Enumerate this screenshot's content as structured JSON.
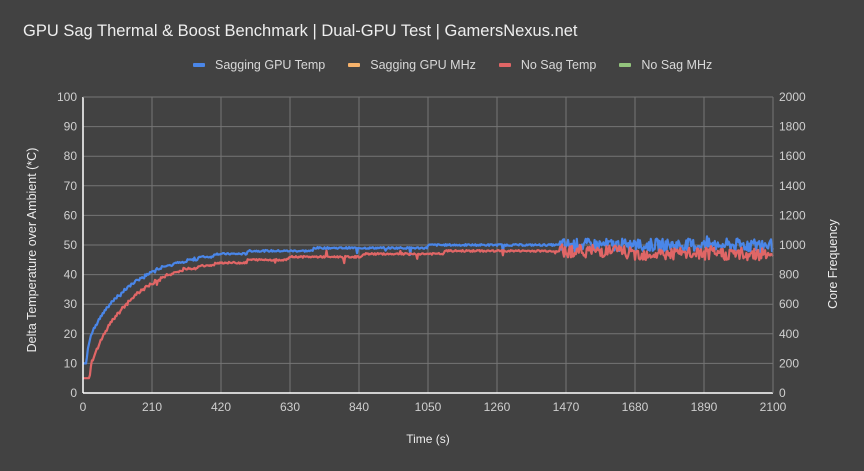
{
  "chart_data": {
    "type": "line",
    "title": "GPU Sag Thermal & Boost Benchmark | Dual-GPU Test | GamersNexus.net",
    "xlabel": "Time (s)",
    "ylabel": "Delta Temperature over Ambient (*C)",
    "y2label": "Core Frequency",
    "xlim": [
      0,
      2100
    ],
    "ylim": [
      0,
      100
    ],
    "y2lim": [
      0,
      2000
    ],
    "x_ticks": [
      0,
      210,
      420,
      630,
      840,
      1050,
      1260,
      1470,
      1680,
      1890,
      2100
    ],
    "y_ticks": [
      0,
      10,
      20,
      30,
      40,
      50,
      60,
      70,
      80,
      90,
      100
    ],
    "y2_ticks": [
      0,
      200,
      400,
      600,
      800,
      1000,
      1200,
      1400,
      1600,
      1800,
      2000
    ],
    "grid": true,
    "legend_position": "top",
    "series": [
      {
        "name": "Sagging GPU Temp",
        "axis": "left",
        "color": "#4a86e8",
        "x": [
          0,
          10,
          15,
          25,
          40,
          60,
          90,
          120,
          150,
          180,
          210,
          250,
          300,
          350,
          420,
          500,
          600,
          700,
          800,
          900,
          1050,
          1260,
          1400,
          1470,
          1550,
          1650,
          1750,
          1850,
          1950,
          2050,
          2100
        ],
        "values": [
          10,
          10,
          15,
          20,
          23,
          27,
          31,
          34,
          37,
          39,
          41,
          43,
          44,
          45.5,
          47,
          47.5,
          48,
          48.5,
          49,
          49,
          49.5,
          49.5,
          49.5,
          49.5,
          50,
          49.5,
          50,
          49.5,
          50,
          49.5,
          49.5
        ]
      },
      {
        "name": "Sagging GPU MHz",
        "axis": "right",
        "color": "#f6b26b",
        "x": [],
        "values": []
      },
      {
        "name": "No Sag Temp",
        "axis": "left",
        "color": "#e06666",
        "x": [
          0,
          10,
          20,
          25,
          40,
          60,
          80,
          100,
          140,
          180,
          210,
          260,
          320,
          380,
          420,
          500,
          550,
          700,
          850,
          900,
          1000,
          1100,
          1250,
          1300,
          1400,
          1470,
          1550,
          1650,
          1750,
          1850,
          1950,
          2050,
          2100
        ],
        "values": [
          5,
          5,
          5,
          10,
          14,
          19,
          23,
          26,
          31,
          35,
          37,
          40,
          42,
          43,
          44,
          44.5,
          45,
          46,
          46.5,
          47,
          47,
          47.5,
          47.5,
          47.5,
          48,
          48,
          47.5,
          47.5,
          47,
          47.5,
          47,
          47.5,
          47
        ]
      },
      {
        "name": "No Sag MHz",
        "axis": "right",
        "color": "#93c47d",
        "x": [],
        "values": []
      }
    ]
  },
  "header": {
    "title": "GPU Sag Thermal & Boost Benchmark | Dual-GPU Test | GamersNexus.net"
  },
  "legend": {
    "items": [
      {
        "label": "Sagging GPU Temp",
        "color": "#4a86e8"
      },
      {
        "label": "Sagging GPU MHz",
        "color": "#f6b26b"
      },
      {
        "label": "No Sag Temp",
        "color": "#e06666"
      },
      {
        "label": "No Sag MHz",
        "color": "#93c47d"
      }
    ]
  },
  "axes": {
    "x_label": "Time (s)",
    "y_left_label": "Delta Temperature over Ambient (*C)",
    "y_right_label": "Core Frequency"
  },
  "colors": {
    "background": "#424242",
    "grid": "#757575",
    "axis_line": "#ffffff"
  }
}
